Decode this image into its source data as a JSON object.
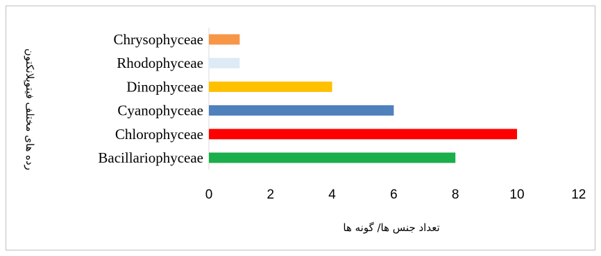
{
  "chart_data": {
    "type": "bar",
    "orientation": "horizontal",
    "categories": [
      "Bacillariophyceae",
      "Chlorophyceae",
      "Cyanophyceae",
      "Dinophyceae",
      "Rhodophyceae",
      "Chrysophyceae"
    ],
    "values": [
      8,
      10,
      6,
      4,
      1,
      1
    ],
    "colors": [
      "#1aaf4b",
      "#ff0000",
      "#4f81bd",
      "#ffc000",
      "#ddebf7",
      "#f79646"
    ],
    "xlabel": "تعداد جنس ها/ گونه ها",
    "ylabel": "رده های مختلف فیتوپلانکتون",
    "xlim": [
      0,
      12
    ],
    "x_ticks": [
      0,
      2,
      4,
      6,
      8,
      10,
      12
    ],
    "grid": false,
    "legend": "none"
  }
}
